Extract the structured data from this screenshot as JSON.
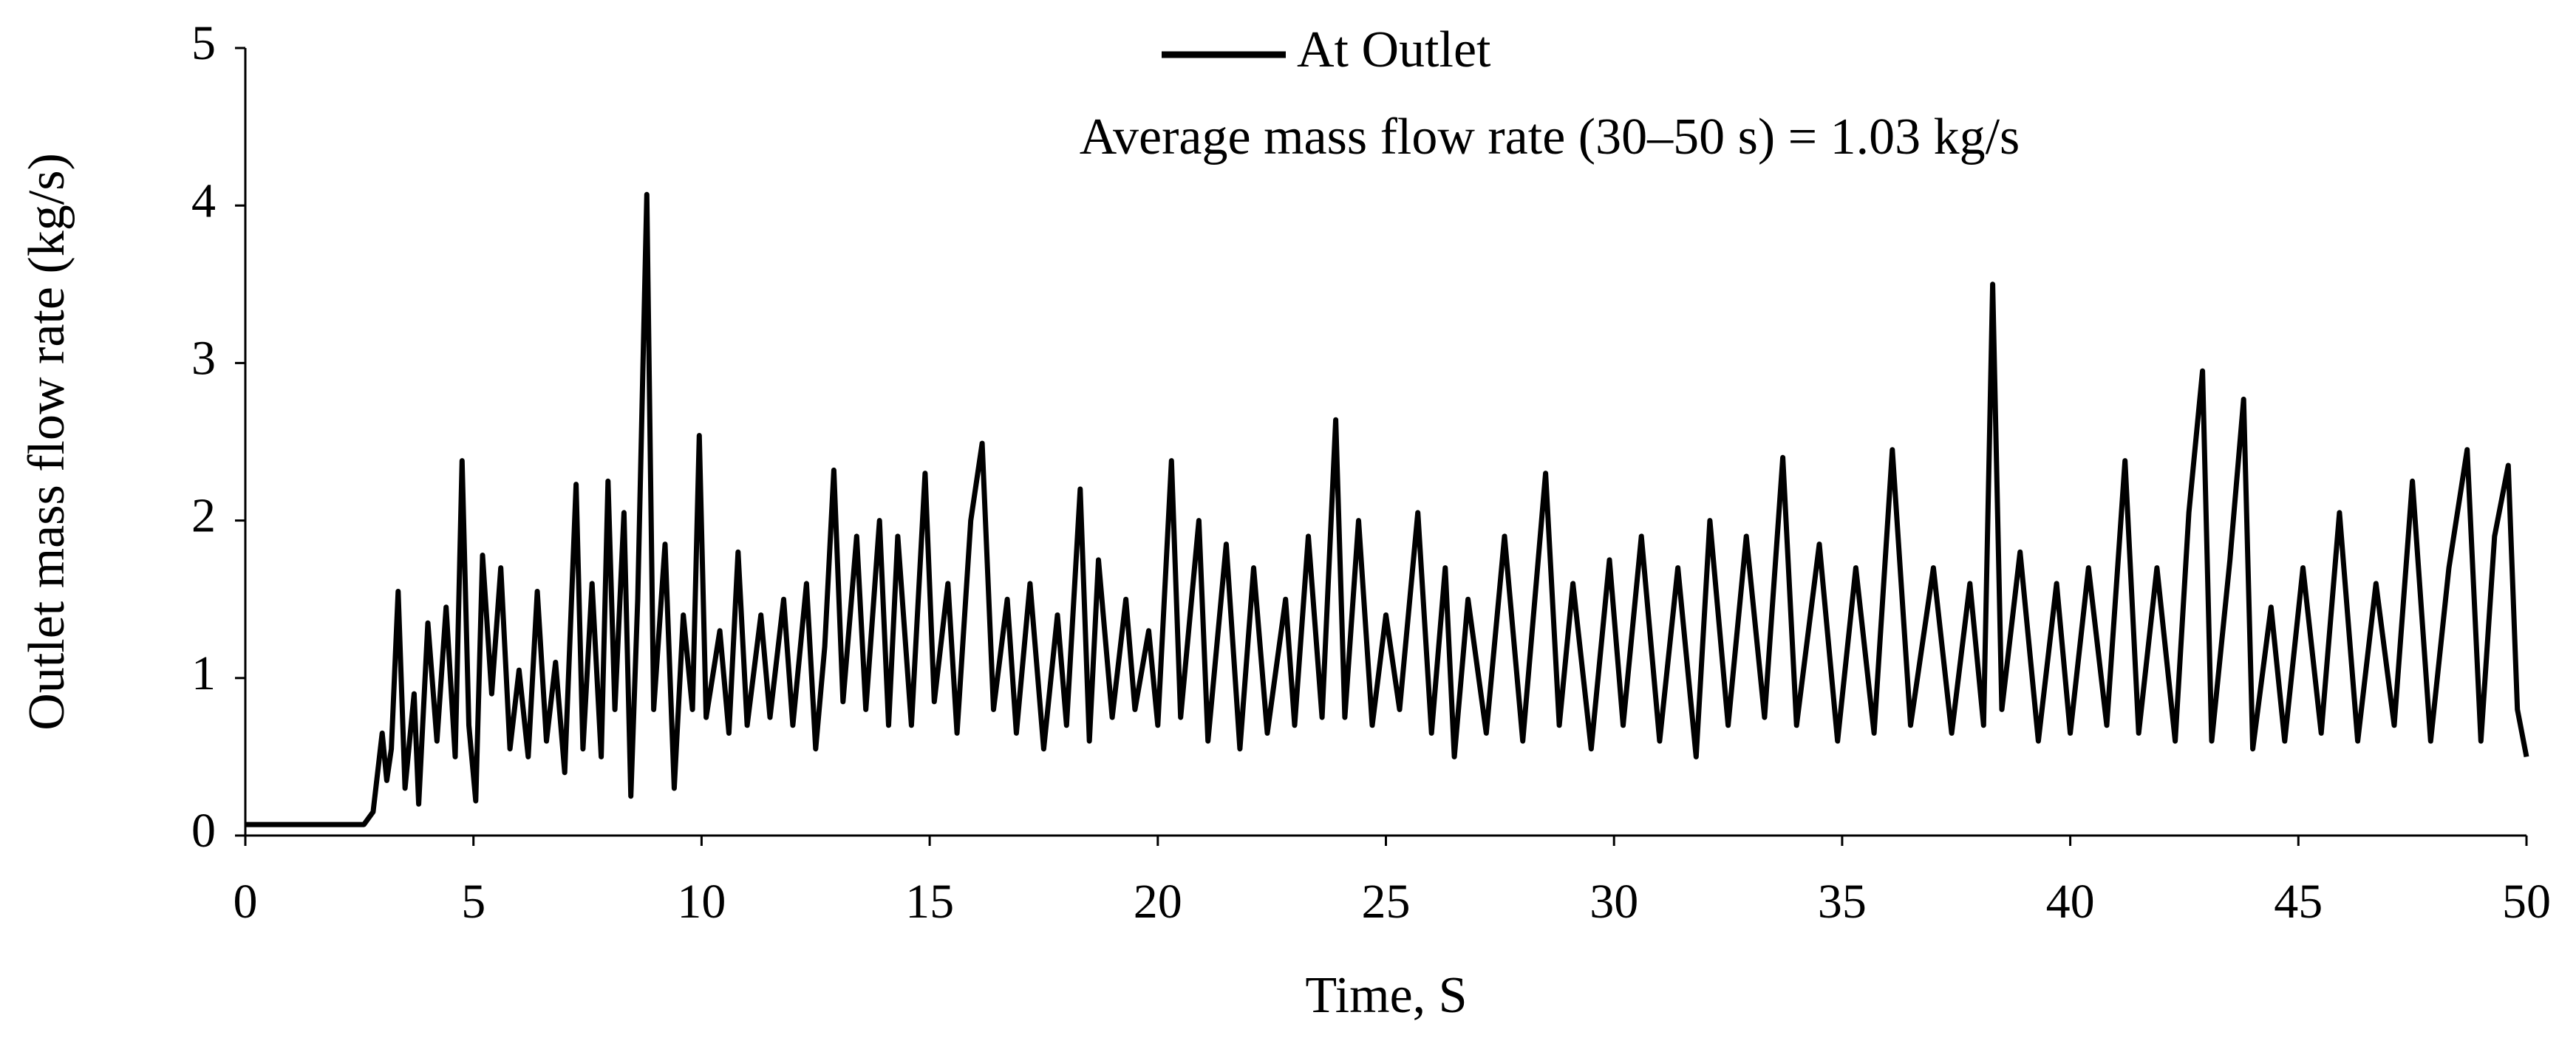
{
  "chart_data": {
    "type": "line",
    "annotation": "Average mass flow rate (30–50 s) = 1.03 kg/s",
    "xlabel": "Time, S",
    "ylabel": "Outlet mass flow rate (kg/s)",
    "legend": "top",
    "grid": false,
    "xlim": [
      0,
      50
    ],
    "xticks": [
      0,
      5,
      10,
      15,
      20,
      25,
      30,
      35,
      40,
      45,
      50
    ],
    "ylim": [
      0,
      5
    ],
    "yticks": [
      0,
      1,
      2,
      3,
      4,
      5
    ],
    "x": [
      0,
      2.6,
      2.8,
      3.0,
      3.1,
      3.2,
      3.35,
      3.5,
      3.7,
      3.8,
      4.0,
      4.2,
      4.4,
      4.6,
      4.75,
      4.9,
      5.05,
      5.2,
      5.4,
      5.6,
      5.8,
      6.0,
      6.2,
      6.4,
      6.6,
      6.8,
      7.0,
      7.25,
      7.4,
      7.6,
      7.8,
      7.95,
      8.1,
      8.3,
      8.45,
      8.6,
      8.8,
      8.95,
      9.2,
      9.4,
      9.6,
      9.8,
      9.95,
      10.1,
      10.4,
      10.6,
      10.8,
      11.0,
      11.3,
      11.5,
      11.8,
      12.0,
      12.3,
      12.5,
      12.7,
      12.9,
      13.1,
      13.4,
      13.6,
      13.9,
      14.1,
      14.3,
      14.6,
      14.9,
      15.1,
      15.4,
      15.6,
      15.9,
      16.15,
      16.4,
      16.7,
      16.9,
      17.2,
      17.5,
      17.8,
      18.0,
      18.3,
      18.5,
      18.7,
      19.0,
      19.3,
      19.5,
      19.8,
      20.0,
      20.3,
      20.5,
      20.9,
      21.1,
      21.5,
      21.8,
      22.1,
      22.4,
      22.8,
      23.0,
      23.3,
      23.6,
      23.9,
      24.1,
      24.4,
      24.7,
      25.0,
      25.3,
      25.7,
      26.0,
      26.3,
      26.5,
      26.8,
      27.2,
      27.6,
      28.0,
      28.5,
      28.8,
      29.1,
      29.5,
      29.9,
      30.2,
      30.6,
      31.0,
      31.4,
      31.8,
      32.1,
      32.5,
      32.9,
      33.3,
      33.7,
      34.0,
      34.5,
      34.9,
      35.3,
      35.7,
      36.1,
      36.5,
      37.0,
      37.4,
      37.8,
      38.1,
      38.3,
      38.5,
      38.9,
      39.3,
      39.7,
      40.0,
      40.4,
      40.8,
      41.2,
      41.5,
      41.9,
      42.3,
      42.6,
      42.9,
      43.1,
      43.5,
      43.8,
      44.0,
      44.4,
      44.7,
      45.1,
      45.5,
      45.9,
      46.3,
      46.7,
      47.1,
      47.5,
      47.9,
      48.3,
      48.7,
      49.0,
      49.3,
      49.6,
      49.8,
      50.0
    ],
    "series": [
      {
        "name": "At Outlet",
        "color": "#000000",
        "values": [
          0.07,
          0.07,
          0.15,
          0.65,
          0.35,
          0.55,
          1.55,
          0.3,
          0.9,
          0.2,
          1.35,
          0.6,
          1.45,
          0.5,
          2.38,
          0.7,
          0.22,
          1.78,
          0.9,
          1.7,
          0.55,
          1.05,
          0.5,
          1.55,
          0.6,
          1.1,
          0.4,
          2.23,
          0.55,
          1.6,
          0.5,
          2.25,
          0.8,
          2.05,
          0.25,
          1.5,
          4.07,
          0.8,
          1.85,
          0.3,
          1.4,
          0.8,
          2.54,
          0.75,
          1.3,
          0.65,
          1.8,
          0.7,
          1.4,
          0.75,
          1.5,
          0.7,
          1.6,
          0.55,
          1.2,
          2.32,
          0.85,
          1.9,
          0.8,
          2.0,
          0.7,
          1.9,
          0.7,
          2.3,
          0.85,
          1.6,
          0.65,
          2.0,
          2.49,
          0.8,
          1.5,
          0.65,
          1.6,
          0.55,
          1.4,
          0.7,
          2.2,
          0.6,
          1.75,
          0.75,
          1.5,
          0.8,
          1.3,
          0.7,
          2.38,
          0.75,
          2.0,
          0.6,
          1.85,
          0.55,
          1.7,
          0.65,
          1.5,
          0.7,
          1.9,
          0.75,
          2.64,
          0.75,
          2.0,
          0.7,
          1.4,
          0.8,
          2.05,
          0.65,
          1.7,
          0.5,
          1.5,
          0.65,
          1.9,
          0.6,
          2.3,
          0.7,
          1.6,
          0.55,
          1.75,
          0.7,
          1.9,
          0.6,
          1.7,
          0.5,
          2.0,
          0.7,
          1.9,
          0.75,
          2.4,
          0.7,
          1.85,
          0.6,
          1.7,
          0.65,
          2.45,
          0.7,
          1.7,
          0.65,
          1.6,
          0.7,
          3.5,
          0.8,
          1.8,
          0.6,
          1.6,
          0.65,
          1.7,
          0.7,
          2.38,
          0.65,
          1.7,
          0.6,
          2.05,
          2.95,
          0.6,
          1.75,
          2.77,
          0.55,
          1.45,
          0.6,
          1.7,
          0.65,
          2.05,
          0.6,
          1.6,
          0.7,
          2.25,
          0.6,
          1.7,
          2.45,
          0.6,
          1.9,
          2.35,
          0.8,
          0.5
        ]
      }
    ]
  }
}
